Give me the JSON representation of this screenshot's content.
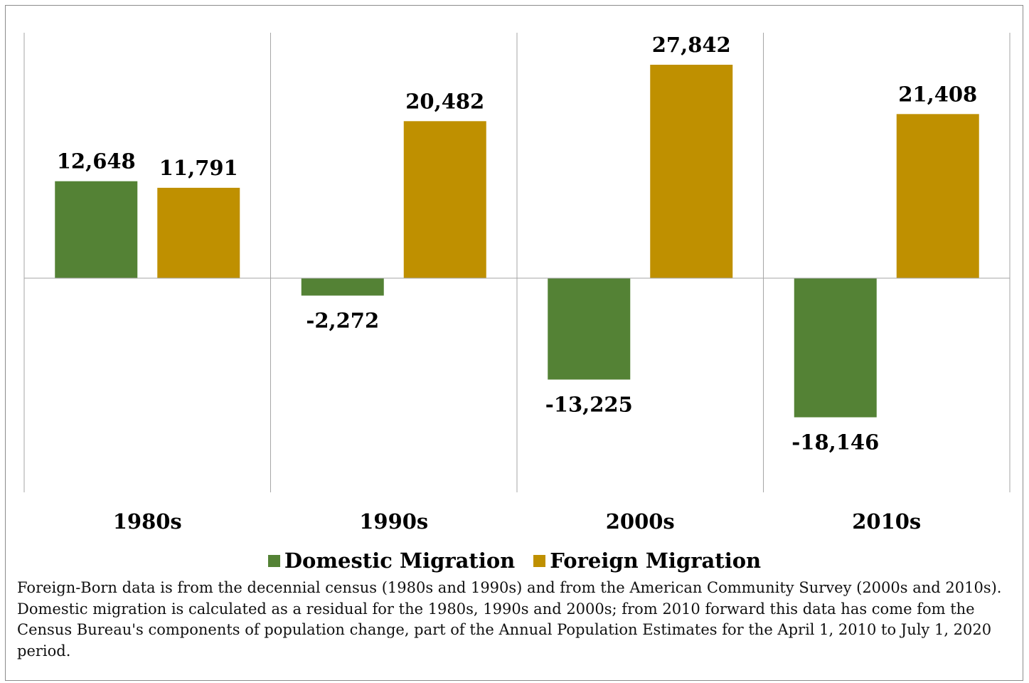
{
  "chart_data": {
    "type": "bar",
    "categories": [
      "1980s",
      "1990s",
      "2000s",
      "2010s"
    ],
    "series": [
      {
        "name": "Domestic Migration",
        "values": [
          12648,
          -2272,
          -13225,
          -18146
        ],
        "labels": [
          "12,648",
          "-2,272",
          "-13,225",
          "-18,146"
        ]
      },
      {
        "name": "Foreign Migration",
        "values": [
          11791,
          20482,
          27842,
          21408
        ],
        "labels": [
          "11,791",
          "20,482",
          "27,842",
          "21,408"
        ]
      }
    ],
    "ylim": [
      -27842,
      27842
    ],
    "colors": {
      "Domestic Migration": "#548235",
      "Foreign Migration": "#bf9000"
    },
    "grid": "vertical category separators",
    "legend": "bottom-center"
  },
  "note": "Foreign-Born data is from the decennial census (1980s and 1990s) and from the American Community Survey (2000s and 2010s).  Domestic migration is calculated as a residual for the 1980s, 1990s and 2000s; from 2010 forward this data has come fom the Census Bureau's components of population change, part of the Annual Population Estimates for  the April 1, 2010  to July 1, 2020 period."
}
